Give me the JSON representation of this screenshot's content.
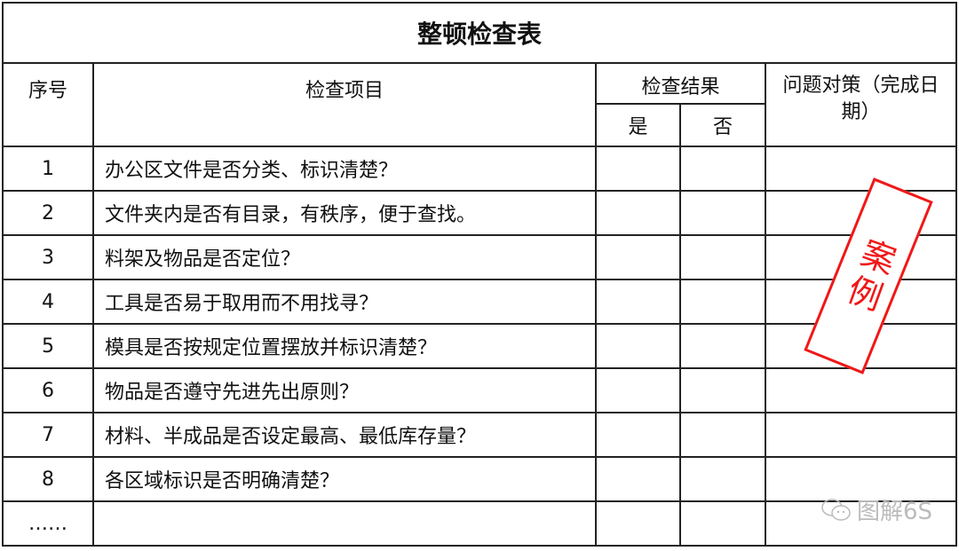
{
  "title": "整顿检查表",
  "headers": {
    "no": "序号",
    "item": "检查项目",
    "result": "检查结果",
    "yes": "是",
    "no_col": "否",
    "measure": "问题对策（完成日期）"
  },
  "rows": [
    {
      "no": "1",
      "item": "办公区文件是否分类、标识清楚？"
    },
    {
      "no": "2",
      "item": "文件夹内是否有目录，有秩序，便于查找。"
    },
    {
      "no": "3",
      "item": "料架及物品是否定位？"
    },
    {
      "no": "4",
      "item": "工具是否易于取用而不用找寻？"
    },
    {
      "no": "5",
      "item": "模具是否按规定位置摆放并标识清楚？"
    },
    {
      "no": "6",
      "item": "物品是否遵守先进先出原则？"
    },
    {
      "no": "7",
      "item": "材料、半成品是否设定最高、最低库存量？"
    },
    {
      "no": "8",
      "item": "各区域标识是否明确清楚？"
    },
    {
      "no": "……",
      "item": ""
    }
  ],
  "stamp": "案例",
  "watermark": "图解6S",
  "colors": {
    "stamp": "#f01818",
    "border": "#222222"
  }
}
